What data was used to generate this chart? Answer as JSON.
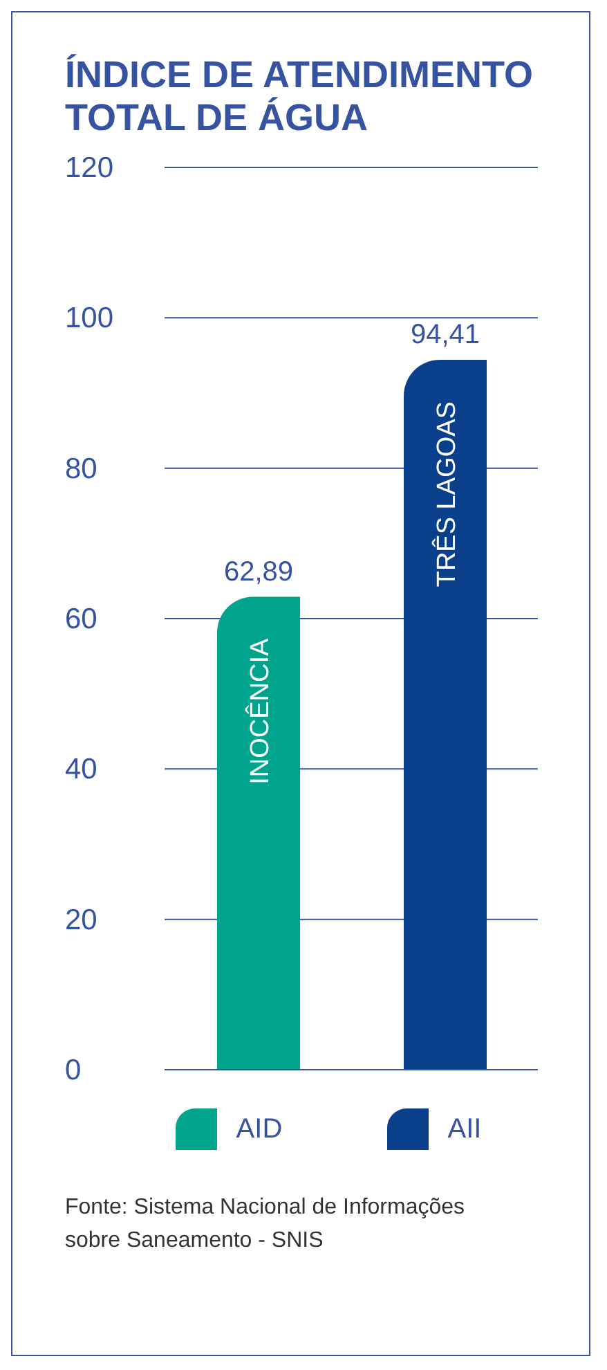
{
  "chart_data": {
    "type": "bar",
    "title": "ÍNDICE DE ATENDIMENTO TOTAL DE ÁGUA",
    "categories": [
      "INOCÊNCIA",
      "TRÊS LAGOAS"
    ],
    "series": [
      {
        "name": "AID",
        "color": "#00a48c",
        "values": [
          62.89,
          null
        ],
        "value_labels": [
          "62,89",
          null
        ]
      },
      {
        "name": "AII",
        "color": "#0a3f8c",
        "values": [
          null,
          94.41
        ],
        "value_labels": [
          null,
          "94,41"
        ]
      }
    ],
    "ylim": [
      0,
      120
    ],
    "yticks": [
      0,
      20,
      40,
      60,
      80,
      100,
      120
    ],
    "grid": "y",
    "legend": "bottom",
    "annotations": [
      "Fonte: Sistema Nacional de Informações sobre Saneamento - SNIS"
    ]
  }
}
